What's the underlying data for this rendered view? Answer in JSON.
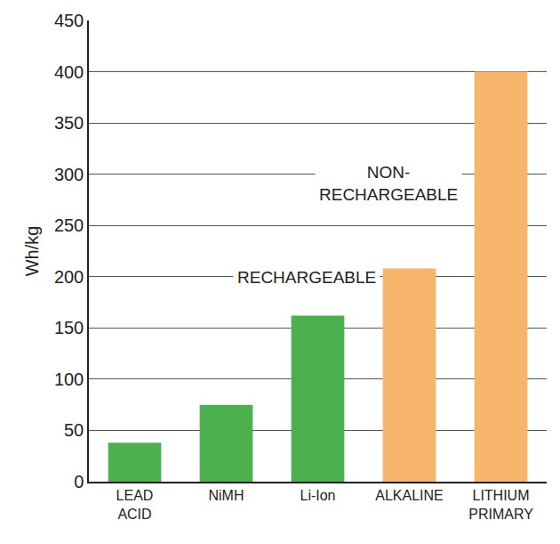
{
  "chart_data": {
    "type": "bar",
    "y_label": "Wh/kg",
    "categories": [
      "LEAD\nACID",
      "NiMH",
      "Li-Ion",
      "ALKALINE",
      "LITHIUM\nPRIMARY"
    ],
    "values": [
      38,
      75,
      162,
      208,
      400
    ],
    "colors": [
      "#4cb04f",
      "#4cb04f",
      "#4cb04f",
      "#f7b56b",
      "#f7b56b"
    ],
    "ylim": [
      0,
      450
    ],
    "yticks": [
      0,
      50,
      100,
      150,
      200,
      250,
      300,
      350,
      400,
      450
    ],
    "grid": true,
    "annotations": [
      {
        "text": "RECHARGEABLE"
      },
      {
        "text": "NON-\nRECHARGEABLE"
      }
    ]
  }
}
